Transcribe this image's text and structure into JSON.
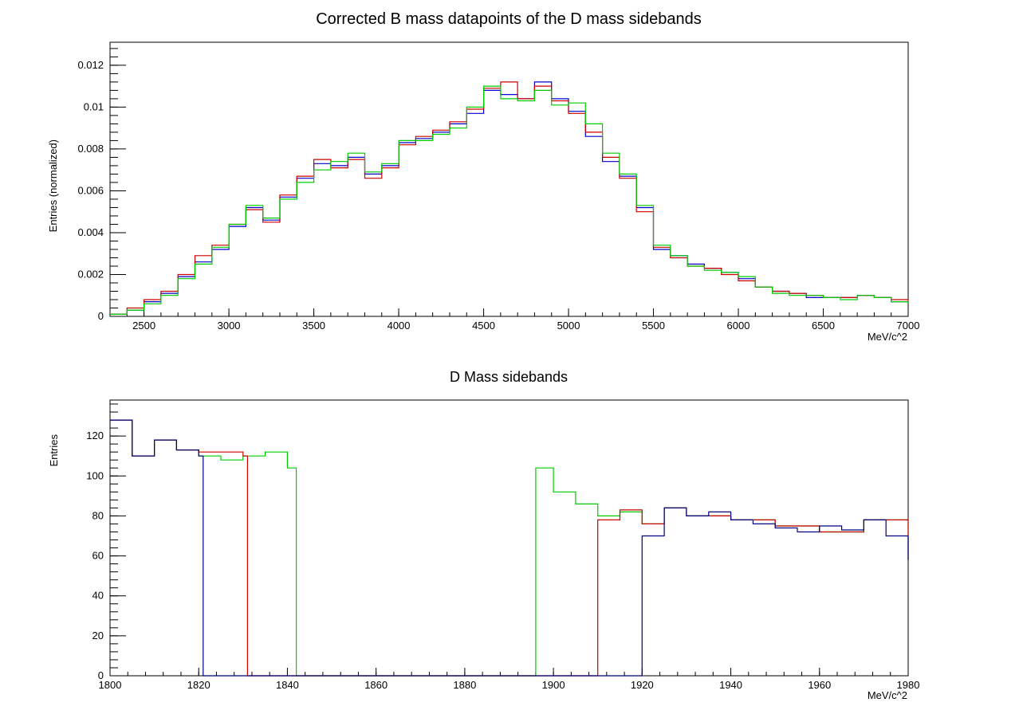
{
  "chart_data": [
    {
      "type": "line",
      "title": "Corrected B mass datapoints of the D mass sidebands",
      "xlabel": "MeV/c^2",
      "ylabel": "Entries (normalized)",
      "xlim": [
        2300,
        7000
      ],
      "ylim": [
        0,
        0.0131
      ],
      "x_ticks": [
        2500,
        3000,
        3500,
        4000,
        4500,
        5000,
        5500,
        6000,
        6500,
        7000
      ],
      "x_tick_labels": [
        "2500",
        "3000",
        "3500",
        "4000",
        "4500",
        "5000",
        "5500",
        "6000",
        "6500",
        "7000"
      ],
      "y_ticks": [
        0,
        0.002,
        0.004,
        0.006,
        0.008,
        0.01,
        0.012
      ],
      "y_tick_labels": [
        "0",
        "0.002",
        "0.004",
        "0.006",
        "0.008",
        "0.01",
        "0.012"
      ],
      "grid": false,
      "style": "step-histogram",
      "series": [
        {
          "color": "#0000cc",
          "x": [
            2300,
            2400,
            2500,
            2600,
            2700,
            2800,
            2900,
            3000,
            3100,
            3200,
            3300,
            3400,
            3500,
            3600,
            3700,
            3800,
            3900,
            4000,
            4100,
            4200,
            4300,
            4400,
            4500,
            4600,
            4700,
            4800,
            4900,
            5000,
            5100,
            5200,
            5300,
            5400,
            5500,
            5600,
            5700,
            5800,
            5900,
            6000,
            6100,
            6200,
            6300,
            6400,
            6500,
            6600,
            6700,
            6800,
            6900,
            7000
          ],
          "y": [
            0.0001,
            0.0003,
            0.0007,
            0.0011,
            0.0019,
            0.0026,
            0.0032,
            0.0043,
            0.0052,
            0.0046,
            0.0057,
            0.0066,
            0.0073,
            0.0072,
            0.0076,
            0.0068,
            0.0072,
            0.0083,
            0.0085,
            0.0088,
            0.0092,
            0.0097,
            0.0108,
            0.0106,
            0.0104,
            0.0112,
            0.0104,
            0.0098,
            0.0086,
            0.0074,
            0.0067,
            0.0052,
            0.0032,
            0.0029,
            0.0025,
            0.0023,
            0.0021,
            0.0018,
            0.0014,
            0.0012,
            0.0011,
            0.0009,
            0.0009,
            0.0009,
            0.001,
            0.0009,
            0.0007,
            0.0006
          ]
        },
        {
          "color": "#cc0000",
          "x": [
            2300,
            2400,
            2500,
            2600,
            2700,
            2800,
            2900,
            3000,
            3100,
            3200,
            3300,
            3400,
            3500,
            3600,
            3700,
            3800,
            3900,
            4000,
            4100,
            4200,
            4300,
            4400,
            4500,
            4600,
            4700,
            4800,
            4900,
            5000,
            5100,
            5200,
            5300,
            5400,
            5500,
            5600,
            5700,
            5800,
            5900,
            6000,
            6100,
            6200,
            6300,
            6400,
            6500,
            6600,
            6700,
            6800,
            6900,
            7000
          ],
          "y": [
            0.0001,
            0.0004,
            0.0008,
            0.0012,
            0.002,
            0.0029,
            0.0034,
            0.0044,
            0.0051,
            0.0045,
            0.0058,
            0.0067,
            0.0075,
            0.0071,
            0.0075,
            0.0066,
            0.0071,
            0.0082,
            0.0086,
            0.0089,
            0.0093,
            0.0099,
            0.0109,
            0.0112,
            0.0104,
            0.011,
            0.0103,
            0.0097,
            0.0088,
            0.0076,
            0.0066,
            0.005,
            0.0033,
            0.0028,
            0.0024,
            0.0023,
            0.002,
            0.0017,
            0.0014,
            0.0012,
            0.0011,
            0.001,
            0.0009,
            0.0009,
            0.001,
            0.0009,
            0.0008,
            0.0006
          ]
        },
        {
          "color": "#00cc00",
          "x": [
            2300,
            2400,
            2500,
            2600,
            2700,
            2800,
            2900,
            3000,
            3100,
            3200,
            3300,
            3400,
            3500,
            3600,
            3700,
            3800,
            3900,
            4000,
            4100,
            4200,
            4300,
            4400,
            4500,
            4600,
            4700,
            4800,
            4900,
            5000,
            5100,
            5200,
            5300,
            5400,
            5500,
            5600,
            5700,
            5800,
            5900,
            6000,
            6100,
            6200,
            6300,
            6400,
            6500,
            6600,
            6700,
            6800,
            6900,
            7000
          ],
          "y": [
            0.0001,
            0.0003,
            0.0006,
            0.001,
            0.0018,
            0.0025,
            0.0033,
            0.0044,
            0.0053,
            0.0047,
            0.0056,
            0.0064,
            0.007,
            0.0074,
            0.0078,
            0.0069,
            0.0073,
            0.0084,
            0.0084,
            0.0087,
            0.009,
            0.01,
            0.011,
            0.0104,
            0.0103,
            0.0108,
            0.0101,
            0.0102,
            0.0092,
            0.0078,
            0.0068,
            0.0053,
            0.0034,
            0.0029,
            0.0024,
            0.0022,
            0.0021,
            0.0019,
            0.0014,
            0.0011,
            0.001,
            0.001,
            0.0009,
            0.0008,
            0.001,
            0.0009,
            0.0007,
            0.0006
          ]
        }
      ]
    },
    {
      "type": "line",
      "title": "D Mass sidebands",
      "xlabel": "MeV/c^2",
      "ylabel": "Entries",
      "xlim": [
        1800,
        1980
      ],
      "ylim": [
        0,
        138
      ],
      "x_ticks": [
        1800,
        1820,
        1840,
        1860,
        1880,
        1900,
        1920,
        1940,
        1960,
        1980
      ],
      "x_tick_labels": [
        "1800",
        "1820",
        "1840",
        "1860",
        "1880",
        "1900",
        "1920",
        "1940",
        "1960",
        "1980"
      ],
      "y_ticks": [
        0,
        20,
        40,
        60,
        80,
        100,
        120
      ],
      "y_tick_labels": [
        "0",
        "20",
        "40",
        "60",
        "80",
        "100",
        "120"
      ],
      "grid": false,
      "style": "step-histogram",
      "series": [
        {
          "color": "#00cc00",
          "x": [
            1800,
            1805,
            1810,
            1815,
            1820,
            1825,
            1830,
            1835,
            1840,
            1842,
            1845,
            1850,
            1860,
            1870,
            1880,
            1890,
            1894,
            1896,
            1900,
            1905,
            1910,
            1915,
            1920,
            1925,
            1930,
            1940,
            1950,
            1960,
            1970,
            1980
          ],
          "y": [
            128,
            110,
            118,
            113,
            110,
            108,
            110,
            112,
            104,
            0,
            0,
            0,
            0,
            0,
            0,
            0,
            0,
            104,
            92,
            86,
            80,
            82,
            76,
            84,
            80,
            78,
            75,
            72,
            78,
            58
          ]
        },
        {
          "color": "#cc0000",
          "x": [
            1800,
            1805,
            1810,
            1815,
            1820,
            1825,
            1830,
            1831,
            1835,
            1840,
            1850,
            1860,
            1870,
            1880,
            1890,
            1900,
            1905,
            1909,
            1910,
            1915,
            1920,
            1925,
            1930,
            1940,
            1950,
            1960,
            1970,
            1980
          ],
          "y": [
            128,
            110,
            118,
            113,
            112,
            112,
            110,
            0,
            0,
            0,
            0,
            0,
            0,
            0,
            0,
            0,
            0,
            0,
            78,
            83,
            76,
            84,
            80,
            78,
            75,
            72,
            78,
            58
          ]
        },
        {
          "color": "#000080",
          "x": [
            1800,
            1805,
            1810,
            1815,
            1820,
            1821,
            1825,
            1830,
            1840,
            1850,
            1860,
            1870,
            1880,
            1890,
            1900,
            1910,
            1919,
            1920,
            1925,
            1930,
            1935,
            1940,
            1945,
            1950,
            1955,
            1960,
            1965,
            1970,
            1975,
            1980
          ],
          "y": [
            128,
            110,
            118,
            113,
            110,
            0,
            0,
            0,
            0,
            0,
            0,
            0,
            0,
            0,
            0,
            0,
            0,
            70,
            84,
            80,
            82,
            78,
            76,
            74,
            72,
            75,
            73,
            78,
            70,
            58
          ]
        }
      ]
    }
  ]
}
